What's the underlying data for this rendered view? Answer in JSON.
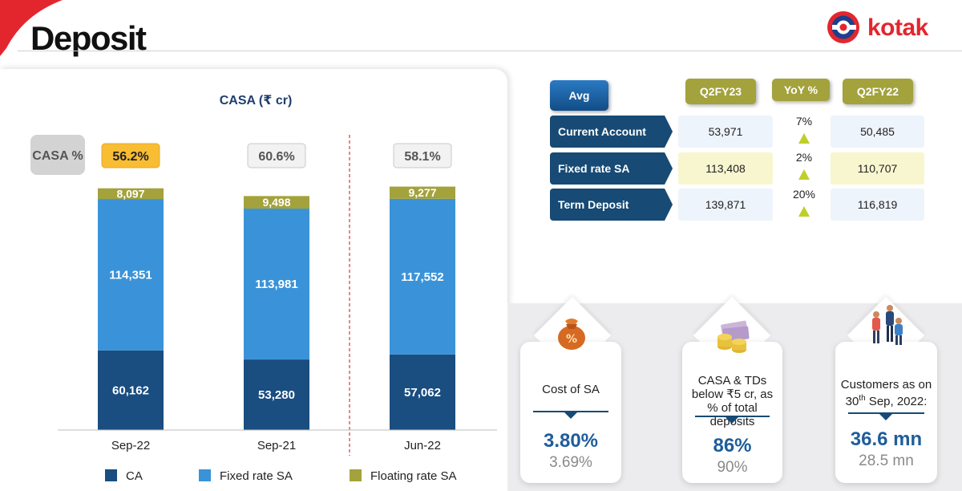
{
  "page": {
    "title": "Deposit",
    "brand": "kotak"
  },
  "chart_data": {
    "type": "bar",
    "stacked": true,
    "title": "CASA (₹ cr)",
    "categories": [
      "Sep-22",
      "Sep-21",
      "Jun-22"
    ],
    "series": [
      {
        "name": "CA",
        "color": "#1a4d80",
        "values": [
          60162,
          53280,
          57062
        ]
      },
      {
        "name": "Fixed rate SA",
        "color": "#3a93d8",
        "values": [
          114351,
          113981,
          117552
        ]
      },
      {
        "name": "Floating rate SA",
        "color": "#a3a23c",
        "values": [
          8097,
          9498,
          9277
        ]
      }
    ],
    "value_labels": {
      "CA": [
        "60,162",
        "53,280",
        "57,062"
      ],
      "Fixed rate SA": [
        "114,351",
        "113,981",
        "117,552"
      ],
      "Floating rate SA": [
        "8,097",
        "9,498",
        "9,277"
      ]
    },
    "casa_percent_label": "CASA %",
    "casa_percent": [
      "56.2%",
      "60.6%",
      "58.1%"
    ],
    "highlight_color": "#f8bd33",
    "legend": [
      "CA",
      "Fixed rate SA",
      "Floating rate SA"
    ],
    "legend_position": "bottom",
    "separator_after_category": "Sep-21",
    "ylim": [
      0,
      190000
    ],
    "grid": false
  },
  "avg_table": {
    "header": {
      "avg": "Avg",
      "current": "Q2FY23",
      "yoy": "YoY %",
      "previous": "Q2FY22"
    },
    "rows": [
      {
        "label": "Current Account",
        "current": "53,971",
        "yoy": "7%",
        "previous": "50,485"
      },
      {
        "label": "Fixed rate SA",
        "current": "113,408",
        "yoy": "2%",
        "previous": "110,707"
      },
      {
        "label": "Term Deposit",
        "current": "139,871",
        "yoy": "20%",
        "previous": "116,819"
      }
    ]
  },
  "kpis": [
    {
      "icon": "money-bag-percent-icon",
      "label": "Cost of SA",
      "value": "3.80%",
      "previous": "3.69%"
    },
    {
      "icon": "cash-coins-icon",
      "label": "CASA & TDs below ₹5 cr, as % of total deposits",
      "value": "86%",
      "previous": "90%"
    },
    {
      "icon": "customers-icon",
      "label_line1": "Customers as on",
      "label_day": "30",
      "label_sup": "th",
      "label_rest": " Sep, 2022:",
      "value": "36.6 mn",
      "previous": "28.5 mn"
    }
  ],
  "colors": {
    "brand_red": "#e3262e",
    "navy": "#174a74",
    "olive": "#a3a23c",
    "blue": "#3a93d8",
    "dark_blue": "#1a4d80"
  }
}
